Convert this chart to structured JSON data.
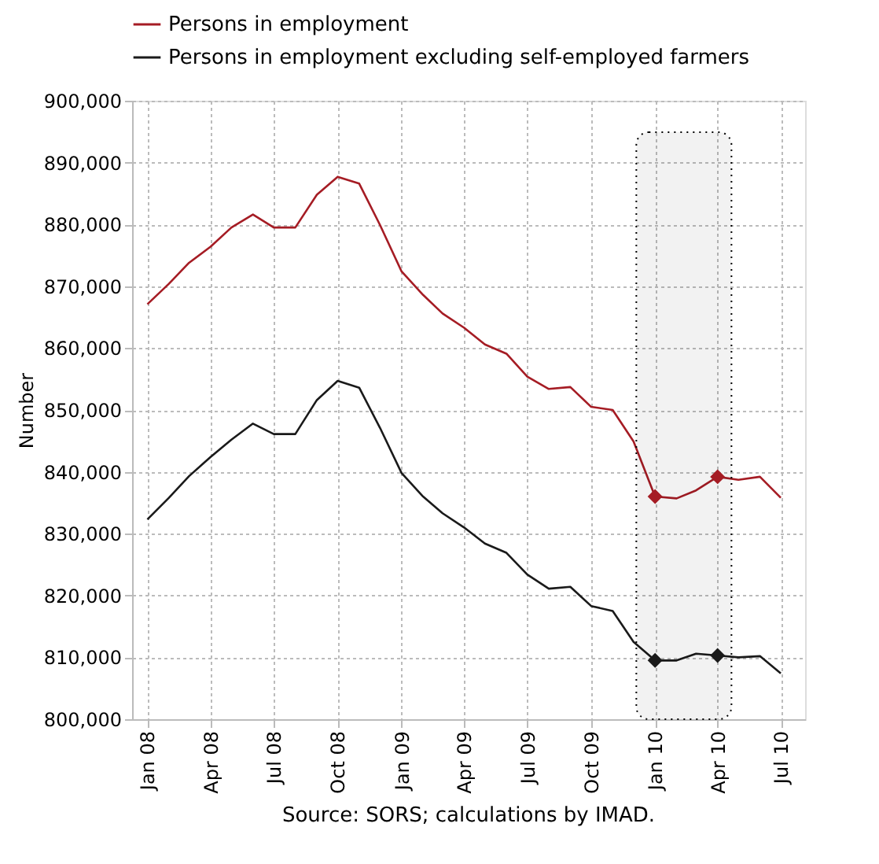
{
  "chart_data": {
    "type": "line",
    "ylabel": "Number",
    "x": [
      "2008-01",
      "2008-02",
      "2008-03",
      "2008-04",
      "2008-05",
      "2008-06",
      "2008-07",
      "2008-08",
      "2008-09",
      "2008-10",
      "2008-11",
      "2008-12",
      "2009-01",
      "2009-02",
      "2009-03",
      "2009-04",
      "2009-05",
      "2009-06",
      "2009-07",
      "2009-08",
      "2009-09",
      "2009-10",
      "2009-11",
      "2009-12",
      "2010-01",
      "2010-02",
      "2010-03",
      "2010-04",
      "2010-05",
      "2010-06",
      "2010-07"
    ],
    "series": [
      {
        "name": "Persons in employment",
        "color": "#a51c24",
        "values": [
          867100,
          870400,
          873800,
          876400,
          879500,
          881600,
          879500,
          879500,
          884800,
          887700,
          886600,
          879900,
          872400,
          868600,
          865600,
          863300,
          860600,
          859100,
          855400,
          853400,
          853700,
          850500,
          850000,
          844900,
          836000,
          835700,
          837000,
          839200,
          838700,
          839200,
          835800
        ]
      },
      {
        "name": "Persons in employment excluding self-employed farmers",
        "color": "#1a1a1a",
        "values": [
          832300,
          835800,
          839300,
          842400,
          845200,
          847800,
          846100,
          846100,
          851600,
          854700,
          853600,
          847100,
          839800,
          836000,
          833300,
          831000,
          828400,
          826900,
          823400,
          821100,
          821400,
          818300,
          817500,
          812500,
          809500,
          809500,
          810600,
          810300,
          810000,
          810200,
          807400
        ]
      },
      {
        "type": "scatter",
        "marker": "diamond",
        "color": "#a51c24",
        "x": [
          "2010-01",
          "2010-04"
        ],
        "values": [
          836000,
          839200
        ]
      },
      {
        "type": "scatter",
        "marker": "diamond",
        "color": "#1a1a1a",
        "x": [
          "2010-01",
          "2010-04"
        ],
        "values": [
          809500,
          810300
        ]
      }
    ],
    "xlim": [
      "2007-12-10",
      "2010-08-05"
    ],
    "xticks": [
      {
        "value": "2008-01",
        "label": "Jan 08"
      },
      {
        "value": "2008-04",
        "label": "Apr 08"
      },
      {
        "value": "2008-07",
        "label": "Jul 08"
      },
      {
        "value": "2008-10",
        "label": "Oct 08"
      },
      {
        "value": "2009-01",
        "label": "Jan 09"
      },
      {
        "value": "2009-04",
        "label": "Apr 09"
      },
      {
        "value": "2009-07",
        "label": "Jul 09"
      },
      {
        "value": "2009-10",
        "label": "Oct 09"
      },
      {
        "value": "2010-01",
        "label": "Jan 10"
      },
      {
        "value": "2010-04",
        "label": "Apr 10"
      },
      {
        "value": "2010-07",
        "label": "Jul 10"
      }
    ],
    "ylim": [
      800000,
      900000
    ],
    "yticks": [
      {
        "value": 800000,
        "label": "800,000"
      },
      {
        "value": 810000,
        "label": "810,000"
      },
      {
        "value": 820000,
        "label": "820,000"
      },
      {
        "value": 830000,
        "label": "830,000"
      },
      {
        "value": 840000,
        "label": "840,000"
      },
      {
        "value": 850000,
        "label": "850,000"
      },
      {
        "value": 860000,
        "label": "860,000"
      },
      {
        "value": 870000,
        "label": "870,000"
      },
      {
        "value": 880000,
        "label": "880,000"
      },
      {
        "value": 890000,
        "label": "890,000"
      },
      {
        "value": 900000,
        "label": "900,000"
      }
    ],
    "bands": [
      {
        "axis": "x",
        "from": "2009-12-05",
        "to": "2010-04-21",
        "color": "#000000"
      }
    ],
    "grid": true,
    "legend": "top",
    "line_style": "solid",
    "annotations": [
      "Source: SORS; calculations by IMAD."
    ]
  }
}
